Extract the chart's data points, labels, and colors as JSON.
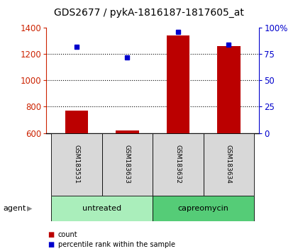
{
  "title": "GDS2677 / pykA-1816187-1817605_at",
  "samples": [
    "GSM183531",
    "GSM183633",
    "GSM183632",
    "GSM183634"
  ],
  "counts": [
    770,
    620,
    1340,
    1260
  ],
  "percentiles": [
    82,
    72,
    96,
    84
  ],
  "ylim_left": [
    600,
    1400
  ],
  "ylim_right": [
    0,
    100
  ],
  "yticks_left": [
    600,
    800,
    1000,
    1200,
    1400
  ],
  "yticks_right": [
    0,
    25,
    50,
    75,
    100
  ],
  "ytick_labels_right": [
    "0",
    "25",
    "50",
    "75",
    "100%"
  ],
  "bar_color": "#bb0000",
  "marker_color": "#0000cc",
  "bar_bottom": 600,
  "groups": [
    {
      "label": "untreated",
      "indices": [
        0,
        1
      ],
      "color": "#aaeebb"
    },
    {
      "label": "capreomycin",
      "indices": [
        2,
        3
      ],
      "color": "#55cc77"
    }
  ],
  "group_row_label": "agent",
  "legend_count_label": "count",
  "legend_pct_label": "percentile rank within the sample",
  "left_axis_color": "#cc2200",
  "right_axis_color": "#0000cc",
  "title_fontsize": 10,
  "tick_fontsize": 8.5
}
